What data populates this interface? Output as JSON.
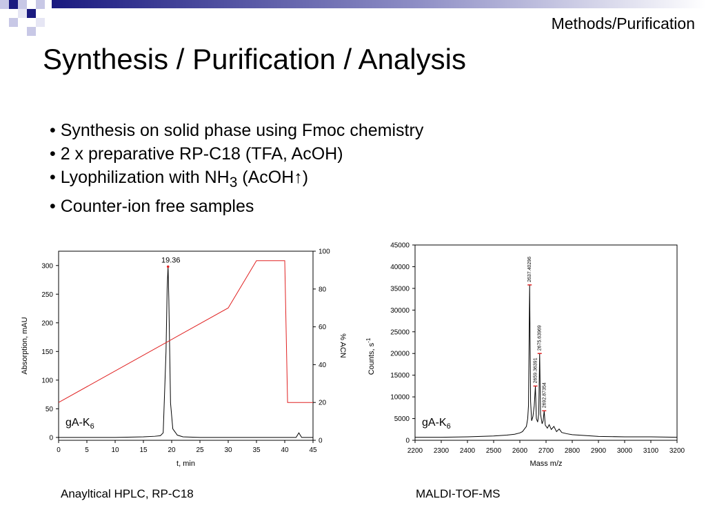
{
  "header": {
    "section": "Methods/Purification",
    "title": "Synthesis / Purification / Analysis"
  },
  "bullets": [
    {
      "pre": "• Synthesis on solid phase using Fmoc chemistry"
    },
    {
      "pre": "• 2 x preparative RP-C18 (TFA, AcOH)"
    },
    {
      "pre": "• Lyophilization with NH",
      "sub": "3",
      "post": " (AcOH↑)"
    },
    {
      "pre": "• Counter-ion free samples"
    }
  ],
  "captions": {
    "hplc": "Anayltical HPLC, RP-C18",
    "ms": "MALDI-TOF-MS"
  },
  "colors": {
    "trace": "#000000",
    "gradient": "#e02020",
    "banner": "#1a1a80"
  },
  "chart_data": [
    {
      "type": "line",
      "xlabel": "t, min",
      "ylabel": "Absorption, mAU",
      "y2label": "% ACN",
      "xlim": [
        0,
        45
      ],
      "ylim": [
        -5,
        325
      ],
      "y2lim": [
        0,
        100
      ],
      "xticks": [
        0,
        5,
        10,
        15,
        20,
        25,
        30,
        35,
        40,
        45
      ],
      "yticks": [
        0,
        50,
        100,
        150,
        200,
        250,
        300
      ],
      "y2ticks": [
        0,
        20,
        40,
        60,
        80,
        100
      ],
      "peak_label": "19.36",
      "sample_label": {
        "pre": "gA-K",
        "sub": "6"
      },
      "series": [
        {
          "x": [
            0,
            5,
            10,
            15,
            17,
            18,
            18.5,
            19,
            19.2,
            19.36,
            19.5,
            19.8,
            20.2,
            21,
            22,
            25,
            30,
            35,
            40,
            42,
            42.5,
            42.8,
            43,
            45
          ],
          "values": [
            0,
            0,
            0,
            1,
            2,
            3,
            8,
            150,
            260,
            298,
            240,
            60,
            15,
            4,
            1,
            0,
            0,
            0,
            0,
            0,
            8,
            3,
            0,
            0
          ]
        },
        {
          "axis": "y2",
          "x": [
            0,
            30,
            35,
            40,
            40.5,
            45
          ],
          "values": [
            20,
            70,
            95,
            95,
            20,
            20
          ]
        }
      ]
    },
    {
      "type": "line",
      "xlabel": "Mass m/z",
      "ylabel": "Counts, s",
      "ylabel_sup": "-1",
      "xlim": [
        2200,
        3200
      ],
      "ylim": [
        0,
        45000
      ],
      "xticks": [
        2200,
        2300,
        2400,
        2500,
        2600,
        2700,
        2800,
        2900,
        3000,
        3100,
        3200
      ],
      "yticks": [
        0,
        5000,
        10000,
        15000,
        20000,
        25000,
        30000,
        35000,
        40000,
        45000
      ],
      "sample_label": {
        "pre": "gA-K",
        "sub": "6"
      },
      "peaks": [
        {
          "x": 2637.40296,
          "y": 35800,
          "label": "2637.40296"
        },
        {
          "x": 2659.36391,
          "y": 12500,
          "label": "2659.36391"
        },
        {
          "x": 2675.63969,
          "y": 20000,
          "label": "2675.63969"
        },
        {
          "x": 2692.87354,
          "y": 6800,
          "label": "2692.87354"
        }
      ],
      "series": [
        {
          "x": [
            2200,
            2300,
            2400,
            2450,
            2500,
            2550,
            2580,
            2600,
            2610,
            2620,
            2625,
            2630,
            2633,
            2637.40296,
            2641,
            2645,
            2650,
            2655,
            2659.36391,
            2663,
            2668,
            2672,
            2675.63969,
            2679,
            2685,
            2689,
            2692.87354,
            2697,
            2705,
            2712,
            2720,
            2730,
            2740,
            2750,
            2760,
            2780,
            2800,
            2850,
            2900,
            3000,
            3100,
            3200
          ],
          "values": [
            700,
            700,
            800,
            900,
            1000,
            1200,
            1400,
            1700,
            2000,
            2800,
            3200,
            5000,
            8000,
            35800,
            9000,
            4500,
            5500,
            8000,
            12500,
            5000,
            4200,
            6000,
            20000,
            6000,
            3800,
            4500,
            6800,
            3500,
            2800,
            3600,
            2500,
            3200,
            2000,
            2600,
            1800,
            1500,
            1300,
            1100,
            900,
            800,
            800,
            700
          ]
        }
      ]
    }
  ]
}
